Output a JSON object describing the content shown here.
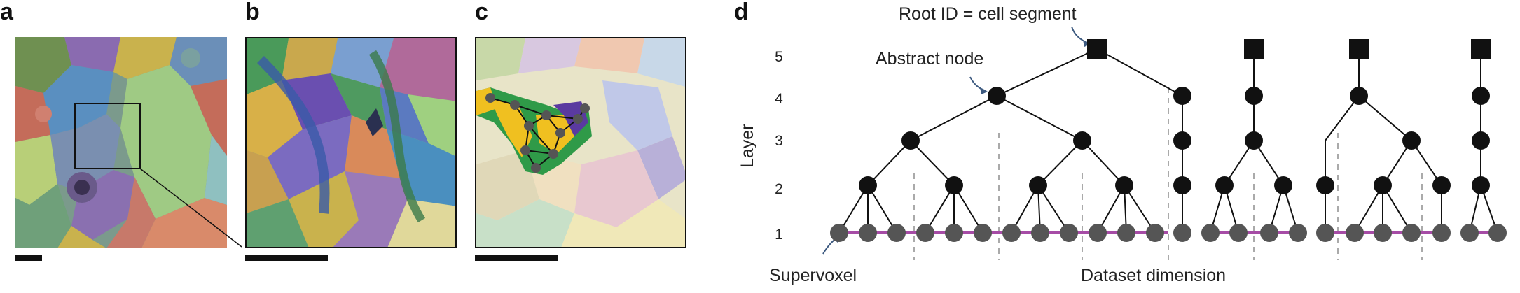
{
  "figure": {
    "panels": [
      {
        "letter": "a"
      },
      {
        "letter": "b"
      },
      {
        "letter": "c"
      },
      {
        "letter": "d"
      }
    ],
    "diagram": {
      "root_label": "Root ID = cell segment",
      "abstract_node_label": "Abstract node",
      "supervoxel_label": "Supervoxel",
      "dataset_label": "Dataset dimension",
      "layer_axis_label": "Layer",
      "layer_ticks": [
        "5",
        "4",
        "3",
        "2",
        "1"
      ]
    }
  },
  "colors": {
    "node": "#111111",
    "supervoxel": "#555555",
    "supervoxel_edge": "#a64ca6",
    "annotation_arrow": "#3d5a80",
    "divider": "#aaaaaa"
  }
}
